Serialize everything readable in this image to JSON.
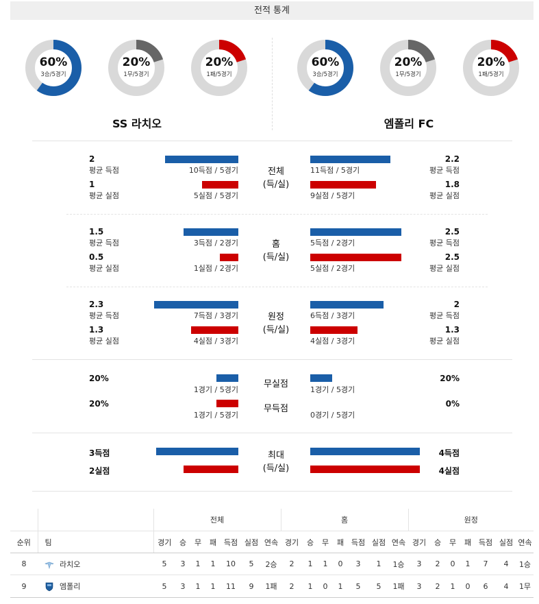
{
  "header": {
    "title": "전적 통계"
  },
  "donuts": [
    {
      "pct": "60%",
      "sub": "3승/5경기",
      "value": 0.6,
      "color": "#1a5ea8"
    },
    {
      "pct": "20%",
      "sub": "1무/5경기",
      "value": 0.2,
      "color": "#666666"
    },
    {
      "pct": "20%",
      "sub": "1패/5경기",
      "value": 0.2,
      "color": "#cc0000"
    },
    {
      "pct": "60%",
      "sub": "3승/5경기",
      "value": 0.6,
      "color": "#1a5ea8"
    },
    {
      "pct": "20%",
      "sub": "1무/5경기",
      "value": 0.2,
      "color": "#666666"
    },
    {
      "pct": "20%",
      "sub": "1패/5경기",
      "value": 0.2,
      "color": "#cc0000"
    }
  ],
  "teams": {
    "left": "SS 라치오",
    "right": "엠폴리 FC"
  },
  "sections": {
    "total": {
      "category": [
        "전체",
        "(득/실)"
      ],
      "left": {
        "avg_for": "2",
        "avg_for_label": "평균 득점",
        "for_caption": "10득점 / 5경기",
        "avg_against": "1",
        "avg_against_label": "평균 실점",
        "against_caption": "5실점 / 5경기"
      },
      "right": {
        "avg_for": "2.2",
        "avg_for_label": "평균 득점",
        "for_caption": "11득점 / 5경기",
        "avg_against": "1.8",
        "avg_against_label": "평균 실점",
        "against_caption": "9실점 / 5경기"
      }
    },
    "home": {
      "category": [
        "홈",
        "(득/실)"
      ],
      "left": {
        "avg_for": "1.5",
        "avg_for_label": "평균 득점",
        "for_caption": "3득점 / 2경기",
        "avg_against": "0.5",
        "avg_against_label": "평균 실점",
        "against_caption": "1실점 / 2경기"
      },
      "right": {
        "avg_for": "2.5",
        "avg_for_label": "평균 득점",
        "for_caption": "5득점 / 2경기",
        "avg_against": "2.5",
        "avg_against_label": "평균 실점",
        "against_caption": "5실점 / 2경기"
      }
    },
    "away": {
      "category": [
        "원정",
        "(득/실)"
      ],
      "left": {
        "avg_for": "2.3",
        "avg_for_label": "평균 득점",
        "for_caption": "7득점 / 3경기",
        "avg_against": "1.3",
        "avg_against_label": "평균 실점",
        "against_caption": "4실점 / 3경기"
      },
      "right": {
        "avg_for": "2",
        "avg_for_label": "평균 득점",
        "for_caption": "6득점 / 3경기",
        "avg_against": "1.3",
        "avg_against_label": "평균 실점",
        "against_caption": "4실점 / 3경기"
      }
    },
    "clean": {
      "cat1": "무실점",
      "cat2": "무득점",
      "left": {
        "clean_sheet": "20%",
        "clean_caption": "1경기 / 5경기",
        "no_score": "20%",
        "no_score_caption": "1경기 / 5경기"
      },
      "right": {
        "clean_sheet": "20%",
        "clean_caption": "1경기 / 5경기",
        "no_score": "0%",
        "no_score_caption": "0경기 / 5경기"
      }
    },
    "max": {
      "category": [
        "최대",
        "(득/실)"
      ],
      "left": {
        "max_for": "3득점",
        "max_against": "2실점"
      },
      "right": {
        "max_for": "4득점",
        "max_against": "4실점"
      }
    }
  },
  "table": {
    "groups": [
      "전체",
      "홈",
      "원정"
    ],
    "col_rank": "순위",
    "col_team": "팀",
    "sub_headers": [
      "경기",
      "승",
      "무",
      "패",
      "득점",
      "실점",
      "연속"
    ],
    "rows": [
      {
        "rank": "8",
        "team": "라치오",
        "logo": "lazio-eagle-logo",
        "total": [
          "5",
          "3",
          "1",
          "1",
          "10",
          "5",
          "2승"
        ],
        "home": [
          "2",
          "1",
          "1",
          "0",
          "3",
          "1",
          "1승"
        ],
        "away": [
          "3",
          "2",
          "0",
          "1",
          "7",
          "4",
          "1승"
        ]
      },
      {
        "rank": "9",
        "team": "엠폴리",
        "logo": "empoli-shield-logo",
        "total": [
          "5",
          "3",
          "1",
          "1",
          "11",
          "9",
          "1패"
        ],
        "home": [
          "2",
          "1",
          "0",
          "1",
          "5",
          "5",
          "1패"
        ],
        "away": [
          "3",
          "2",
          "1",
          "0",
          "6",
          "4",
          "1무"
        ]
      }
    ]
  }
}
